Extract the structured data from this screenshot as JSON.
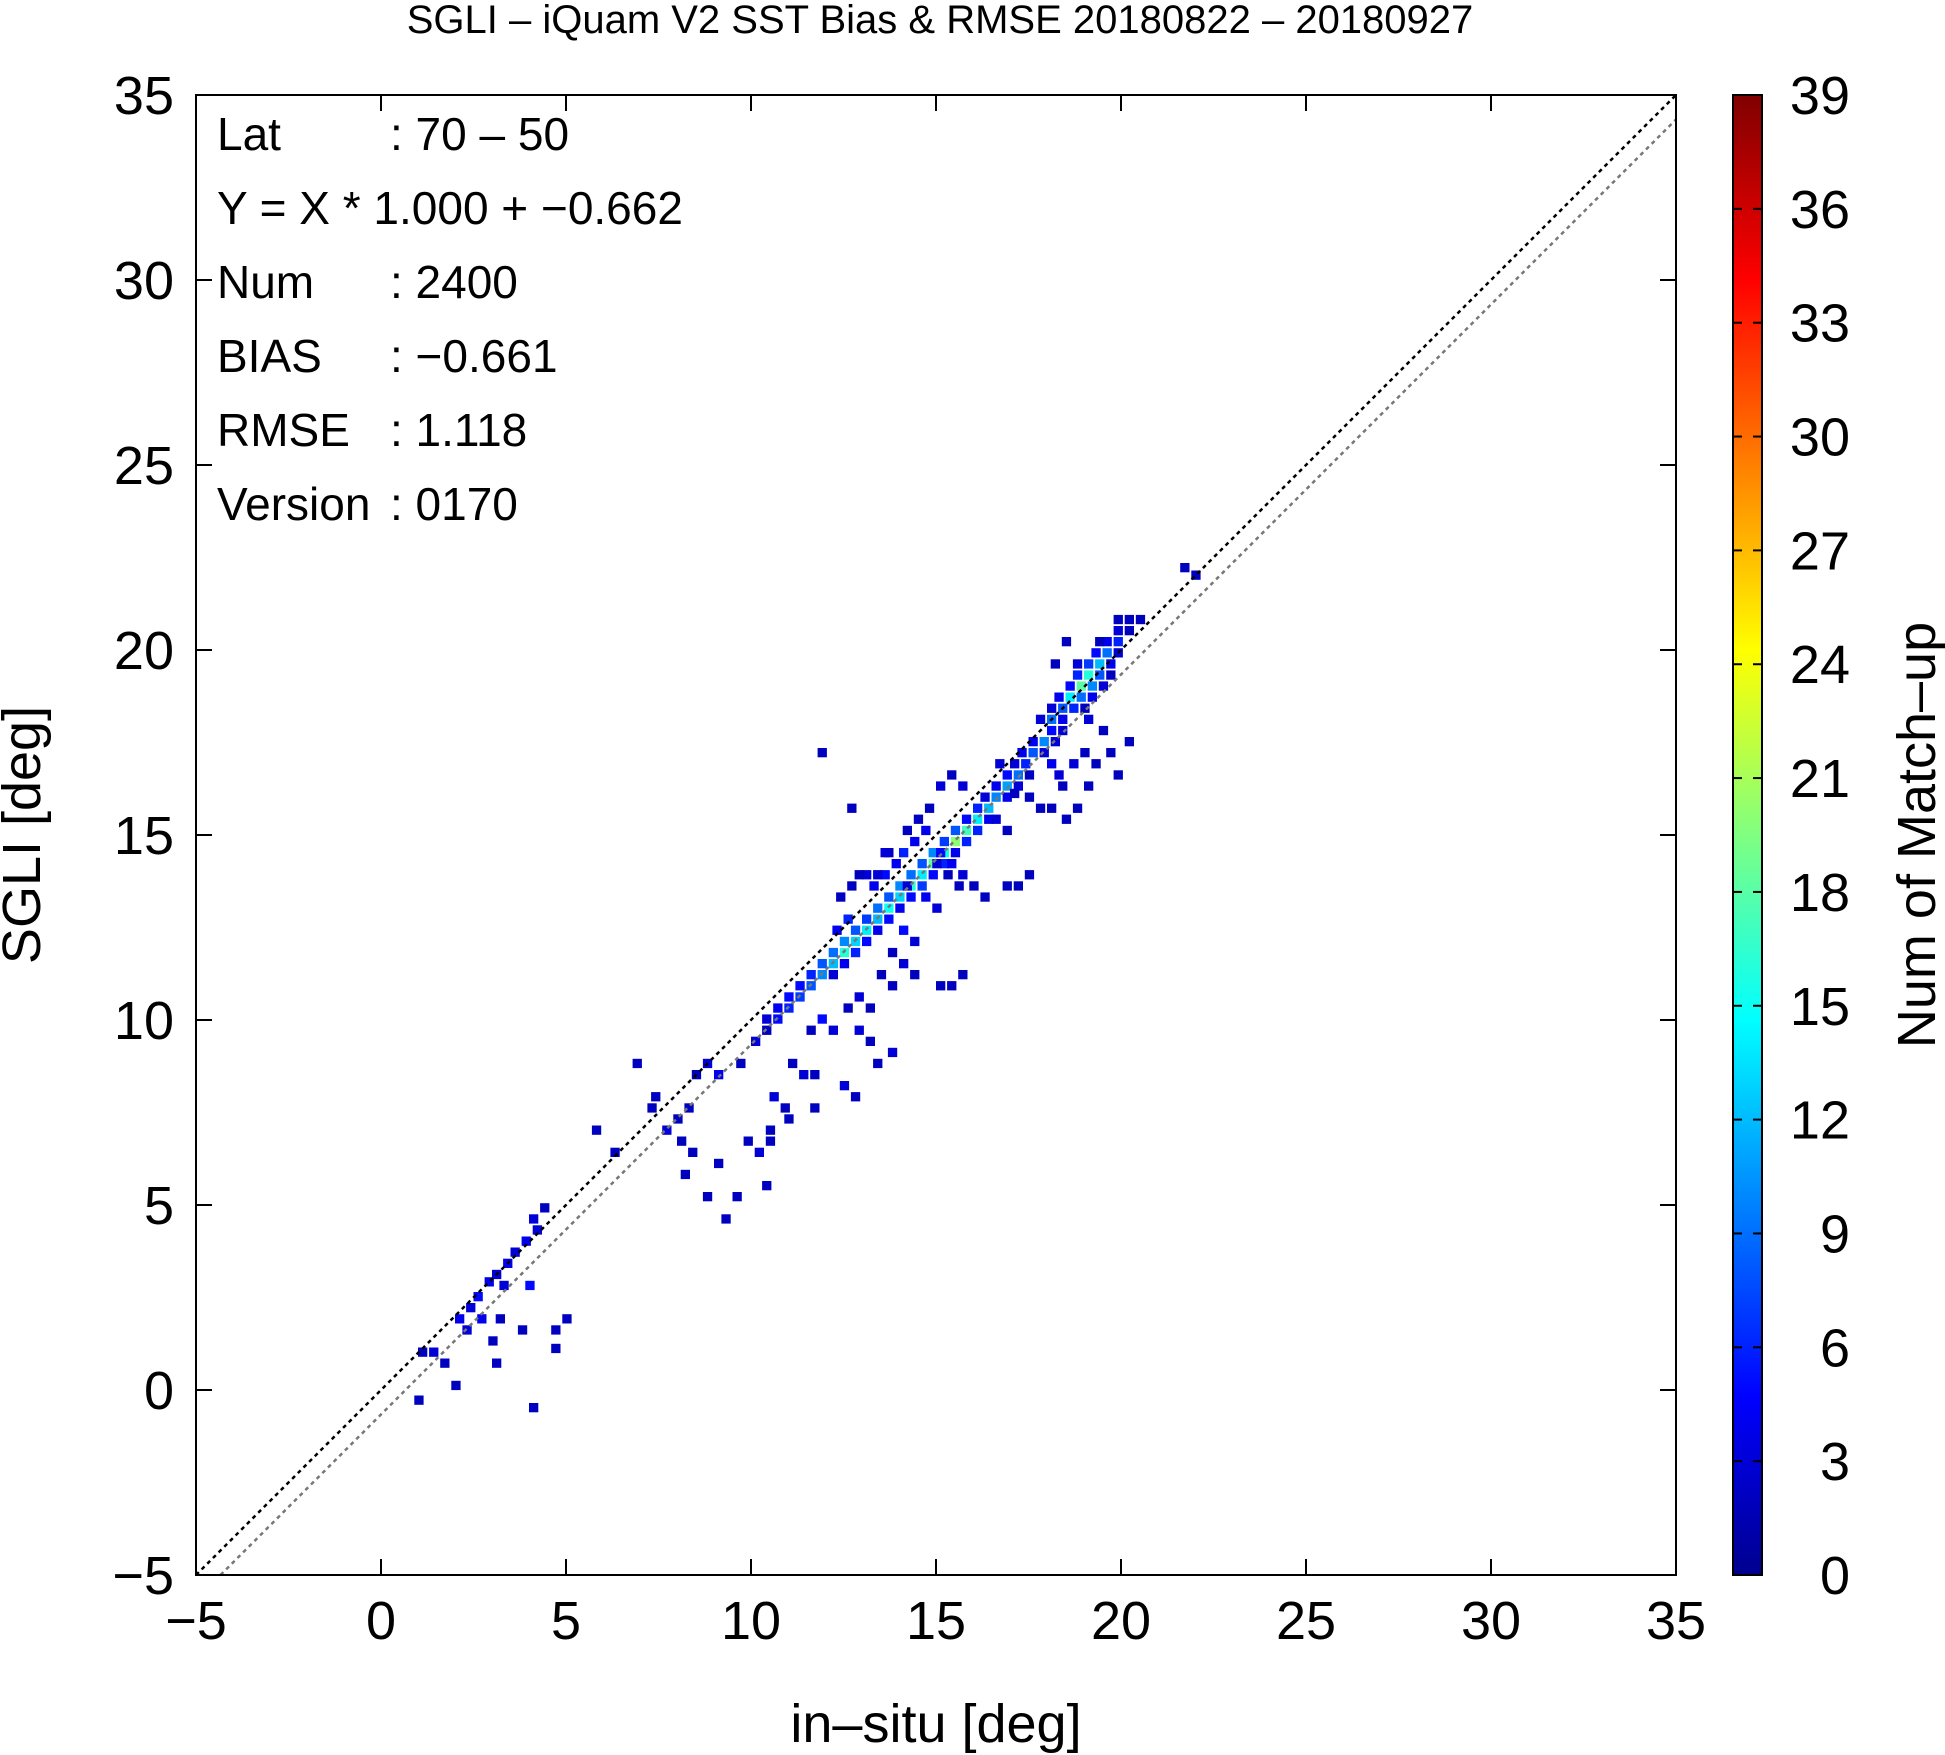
{
  "chart_data": {
    "type": "heatmap",
    "title": "SGLI – iQuam V2 SST Bias & RMSE 20180822 – 20180927",
    "xlabel": "in–situ [deg]",
    "ylabel": "SGLI [deg]",
    "xlim": [
      -5,
      35
    ],
    "ylim": [
      -5,
      35
    ],
    "x_ticks": [
      "−5",
      "0",
      "5",
      "10",
      "15",
      "20",
      "25",
      "30",
      "35"
    ],
    "y_ticks": [
      "−5",
      "0",
      "5",
      "10",
      "15",
      "20",
      "25",
      "30",
      "35"
    ],
    "colorbar": {
      "label": "Num of Match–up",
      "range": [
        0,
        39
      ],
      "ticks": [
        "0",
        "3",
        "6",
        "9",
        "12",
        "15",
        "18",
        "21",
        "24",
        "27",
        "30",
        "33",
        "36",
        "39"
      ]
    },
    "lines": [
      {
        "slope": 1.0,
        "intercept": 0.0,
        "color": "#000000",
        "style": "dotted"
      },
      {
        "slope": 1.0,
        "intercept": -0.662,
        "color": "#777777",
        "style": "dotted"
      }
    ],
    "stats": [
      {
        "label": "Lat",
        "value": ": 70 – 50"
      },
      {
        "label": "Y = X * 1.000 + −0.662",
        "value": ""
      },
      {
        "label": "Num",
        "value": ": 2400"
      },
      {
        "label": "BIAS",
        "value": ": −0.661"
      },
      {
        "label": "RMSE",
        "value": ": 1.118"
      },
      {
        "label": "Version",
        "value": ": 0170"
      }
    ],
    "bin_size": 0.25,
    "cells": [
      [
        21.6,
        22.1,
        2
      ],
      [
        21.9,
        21.9,
        2
      ],
      [
        19.8,
        20.7,
        2
      ],
      [
        20.1,
        20.7,
        2
      ],
      [
        20.4,
        20.7,
        2
      ],
      [
        19.8,
        20.4,
        3
      ],
      [
        20.1,
        20.4,
        2
      ],
      [
        19.5,
        20.1,
        4
      ],
      [
        19.8,
        20.1,
        6
      ],
      [
        19.2,
        19.8,
        5
      ],
      [
        19.5,
        19.8,
        9
      ],
      [
        19.8,
        19.8,
        3
      ],
      [
        19.0,
        19.5,
        7
      ],
      [
        19.3,
        19.5,
        12
      ],
      [
        19.6,
        19.5,
        4
      ],
      [
        18.7,
        19.2,
        6
      ],
      [
        19.0,
        19.2,
        16
      ],
      [
        19.3,
        19.2,
        8
      ],
      [
        18.5,
        18.9,
        5
      ],
      [
        18.8,
        18.9,
        18
      ],
      [
        19.1,
        18.9,
        10
      ],
      [
        19.4,
        18.9,
        3
      ],
      [
        18.2,
        18.6,
        4
      ],
      [
        18.5,
        18.6,
        14
      ],
      [
        18.8,
        18.6,
        9
      ],
      [
        19.1,
        18.6,
        4
      ],
      [
        18.0,
        18.3,
        3
      ],
      [
        18.3,
        18.3,
        8
      ],
      [
        18.6,
        18.3,
        6
      ],
      [
        18.9,
        18.3,
        2
      ],
      [
        17.7,
        18.0,
        3
      ],
      [
        18.0,
        18.0,
        9
      ],
      [
        18.3,
        18.0,
        4
      ],
      [
        18.0,
        17.7,
        5
      ],
      [
        18.3,
        17.7,
        3
      ],
      [
        17.5,
        17.4,
        4
      ],
      [
        17.8,
        17.4,
        10
      ],
      [
        18.1,
        17.4,
        3
      ],
      [
        17.2,
        17.1,
        4
      ],
      [
        17.5,
        17.1,
        8
      ],
      [
        17.8,
        17.1,
        3
      ],
      [
        18.0,
        16.8,
        4
      ],
      [
        18.2,
        16.5,
        3
      ],
      [
        17.0,
        16.8,
        3
      ],
      [
        17.3,
        16.8,
        6
      ],
      [
        16.8,
        16.5,
        5
      ],
      [
        17.1,
        16.5,
        9
      ],
      [
        16.5,
        16.2,
        4
      ],
      [
        16.8,
        16.2,
        11
      ],
      [
        17.1,
        16.2,
        3
      ],
      [
        16.2,
        15.9,
        3
      ],
      [
        16.5,
        15.9,
        10
      ],
      [
        16.8,
        15.9,
        4
      ],
      [
        16.0,
        15.6,
        6
      ],
      [
        16.3,
        15.6,
        12
      ],
      [
        15.7,
        15.3,
        5
      ],
      [
        16.0,
        15.3,
        14
      ],
      [
        16.3,
        15.3,
        4
      ],
      [
        15.4,
        15.0,
        8
      ],
      [
        15.7,
        15.0,
        17
      ],
      [
        16.0,
        15.0,
        6
      ],
      [
        15.1,
        14.7,
        7
      ],
      [
        15.4,
        14.7,
        20
      ],
      [
        15.7,
        14.7,
        6
      ],
      [
        14.8,
        14.4,
        10
      ],
      [
        15.1,
        14.4,
        15
      ],
      [
        15.4,
        14.4,
        4
      ],
      [
        14.5,
        14.1,
        8
      ],
      [
        14.8,
        14.1,
        18
      ],
      [
        15.1,
        14.1,
        6
      ],
      [
        14.2,
        13.8,
        9
      ],
      [
        14.5,
        13.8,
        14
      ],
      [
        14.8,
        13.8,
        5
      ],
      [
        13.9,
        13.5,
        10
      ],
      [
        14.2,
        13.5,
        16
      ],
      [
        14.5,
        13.5,
        7
      ],
      [
        13.6,
        13.2,
        8
      ],
      [
        13.9,
        13.2,
        13
      ],
      [
        14.2,
        13.2,
        5
      ],
      [
        13.3,
        12.9,
        9
      ],
      [
        13.6,
        12.9,
        15
      ],
      [
        13.9,
        12.9,
        4
      ],
      [
        13.0,
        12.6,
        7
      ],
      [
        13.3,
        12.6,
        12
      ],
      [
        13.6,
        12.6,
        5
      ],
      [
        12.7,
        12.3,
        8
      ],
      [
        13.0,
        12.3,
        14
      ],
      [
        13.3,
        12.3,
        4
      ],
      [
        12.4,
        12.0,
        10
      ],
      [
        12.7,
        12.0,
        13
      ],
      [
        13.0,
        12.0,
        5
      ],
      [
        12.1,
        11.7,
        9
      ],
      [
        12.4,
        11.7,
        16
      ],
      [
        12.7,
        11.7,
        6
      ],
      [
        11.8,
        11.4,
        8
      ],
      [
        12.1,
        11.4,
        12
      ],
      [
        12.4,
        11.4,
        4
      ],
      [
        11.5,
        11.1,
        6
      ],
      [
        11.8,
        11.1,
        10
      ],
      [
        12.1,
        11.1,
        3
      ],
      [
        11.2,
        10.8,
        5
      ],
      [
        11.5,
        10.8,
        8
      ],
      [
        10.9,
        10.5,
        5
      ],
      [
        11.2,
        10.5,
        7
      ],
      [
        10.6,
        10.2,
        4
      ],
      [
        10.9,
        10.2,
        6
      ],
      [
        10.3,
        9.9,
        3
      ],
      [
        10.6,
        9.9,
        5
      ],
      [
        14.0,
        14.4,
        6
      ],
      [
        14.3,
        14.7,
        4
      ],
      [
        13.5,
        13.8,
        5
      ],
      [
        13.2,
        13.5,
        4
      ],
      [
        12.5,
        12.6,
        6
      ],
      [
        12.2,
        12.3,
        4
      ],
      [
        13.0,
        13.8,
        3
      ],
      [
        12.8,
        13.8,
        2
      ],
      [
        13.3,
        13.8,
        3
      ],
      [
        13.6,
        14.4,
        2
      ],
      [
        12.6,
        13.5,
        2
      ],
      [
        12.3,
        13.2,
        2
      ],
      [
        14.9,
        14.1,
        3
      ],
      [
        15.2,
        13.8,
        2
      ],
      [
        15.5,
        13.5,
        2
      ],
      [
        14.6,
        13.2,
        4
      ],
      [
        14.9,
        12.9,
        3
      ],
      [
        14.0,
        12.3,
        5
      ],
      [
        14.3,
        12.0,
        3
      ],
      [
        13.7,
        11.7,
        2
      ],
      [
        14.0,
        11.4,
        3
      ],
      [
        13.4,
        11.1,
        2
      ],
      [
        13.7,
        10.8,
        2
      ],
      [
        14.3,
        11.1,
        2
      ],
      [
        15.0,
        10.8,
        2
      ],
      [
        15.3,
        10.8,
        2
      ],
      [
        15.6,
        11.1,
        2
      ],
      [
        12.8,
        10.5,
        3
      ],
      [
        12.5,
        10.2,
        2
      ],
      [
        13.1,
        10.2,
        2
      ],
      [
        11.8,
        9.9,
        5
      ],
      [
        12.1,
        9.6,
        3
      ],
      [
        11.5,
        9.6,
        2
      ],
      [
        12.8,
        9.6,
        3
      ],
      [
        13.1,
        9.3,
        2
      ],
      [
        13.7,
        9.0,
        3
      ],
      [
        13.3,
        8.7,
        2
      ],
      [
        11.0,
        8.7,
        2
      ],
      [
        11.3,
        8.4,
        3
      ],
      [
        11.6,
        8.4,
        2
      ],
      [
        12.4,
        8.1,
        3
      ],
      [
        12.7,
        7.8,
        2
      ],
      [
        11.6,
        7.5,
        2
      ],
      [
        10.5,
        7.8,
        3
      ],
      [
        10.8,
        7.5,
        2
      ],
      [
        10.9,
        7.2,
        2
      ],
      [
        10.4,
        6.9,
        2
      ],
      [
        10.1,
        6.3,
        3
      ],
      [
        10.4,
        6.6,
        2
      ],
      [
        10.3,
        5.4,
        2
      ],
      [
        9.8,
        6.6,
        2
      ],
      [
        9.5,
        5.1,
        2
      ],
      [
        9.2,
        4.5,
        2
      ],
      [
        9.0,
        6.0,
        2
      ],
      [
        9.0,
        8.4,
        4
      ],
      [
        8.7,
        8.7,
        3
      ],
      [
        8.4,
        8.4,
        2
      ],
      [
        8.2,
        7.5,
        2
      ],
      [
        7.9,
        7.2,
        2
      ],
      [
        7.6,
        6.9,
        3
      ],
      [
        7.3,
        7.8,
        2
      ],
      [
        6.8,
        8.7,
        2
      ],
      [
        8.0,
        6.6,
        2
      ],
      [
        8.3,
        6.3,
        2
      ],
      [
        8.7,
        5.1,
        2
      ],
      [
        8.1,
        5.7,
        2
      ],
      [
        6.2,
        6.3,
        2
      ],
      [
        5.7,
        6.9,
        2
      ],
      [
        7.2,
        7.5,
        2
      ],
      [
        9.6,
        8.7,
        2
      ],
      [
        10.0,
        9.3,
        3
      ],
      [
        10.3,
        9.6,
        2
      ],
      [
        11.8,
        17.1,
        2
      ],
      [
        12.6,
        15.6,
        2
      ],
      [
        13.5,
        14.4,
        3
      ],
      [
        13.8,
        14.1,
        4
      ],
      [
        14.1,
        13.5,
        3
      ],
      [
        15.0,
        14.4,
        5
      ],
      [
        15.3,
        14.1,
        4
      ],
      [
        15.6,
        13.8,
        3
      ],
      [
        15.9,
        13.5,
        2
      ],
      [
        16.2,
        13.2,
        2
      ],
      [
        16.8,
        13.5,
        2
      ],
      [
        17.1,
        13.5,
        2
      ],
      [
        17.4,
        13.8,
        2
      ],
      [
        16.5,
        15.3,
        3
      ],
      [
        16.8,
        15.0,
        2
      ],
      [
        17.7,
        15.6,
        2
      ],
      [
        18.0,
        15.6,
        2
      ],
      [
        18.4,
        15.3,
        2
      ],
      [
        18.7,
        15.6,
        2
      ],
      [
        19.0,
        16.2,
        2
      ],
      [
        18.3,
        16.2,
        2
      ],
      [
        18.6,
        16.8,
        3
      ],
      [
        18.9,
        17.1,
        2
      ],
      [
        19.2,
        16.8,
        2
      ],
      [
        19.6,
        17.1,
        2
      ],
      [
        19.8,
        16.5,
        2
      ],
      [
        20.1,
        17.4,
        2
      ],
      [
        19.4,
        17.7,
        2
      ],
      [
        17.0,
        16.0,
        2
      ],
      [
        16.6,
        16.8,
        3
      ],
      [
        15.6,
        16.2,
        3
      ],
      [
        15.3,
        16.5,
        2
      ],
      [
        15.0,
        16.2,
        3
      ],
      [
        14.7,
        15.6,
        2
      ],
      [
        14.4,
        15.3,
        2
      ],
      [
        14.1,
        15.0,
        2
      ],
      [
        14.6,
        15.0,
        4
      ],
      [
        17.4,
        15.9,
        2
      ],
      [
        17.4,
        16.5,
        2
      ],
      [
        19.0,
        18.0,
        3
      ],
      [
        19.6,
        19.2,
        2
      ],
      [
        19.3,
        20.1,
        2
      ],
      [
        18.4,
        20.1,
        2
      ],
      [
        18.7,
        19.5,
        3
      ],
      [
        18.1,
        19.5,
        2
      ],
      [
        4.0,
        4.5,
        3
      ],
      [
        4.3,
        4.8,
        2
      ],
      [
        4.1,
        4.2,
        3
      ],
      [
        3.8,
        3.9,
        4
      ],
      [
        3.5,
        3.6,
        3
      ],
      [
        3.3,
        3.3,
        4
      ],
      [
        3.0,
        3.0,
        3
      ],
      [
        2.8,
        2.8,
        4
      ],
      [
        3.2,
        2.7,
        3
      ],
      [
        3.9,
        2.7,
        5
      ],
      [
        2.5,
        2.4,
        5
      ],
      [
        2.3,
        2.1,
        3
      ],
      [
        2.6,
        1.8,
        4
      ],
      [
        2.0,
        1.8,
        4
      ],
      [
        2.2,
        1.5,
        3
      ],
      [
        3.1,
        1.8,
        2
      ],
      [
        3.7,
        1.5,
        2
      ],
      [
        2.9,
        1.2,
        2
      ],
      [
        4.6,
        1.5,
        2
      ],
      [
        4.9,
        1.8,
        2
      ],
      [
        4.6,
        1.0,
        2
      ],
      [
        3.0,
        0.6,
        2
      ],
      [
        1.6,
        0.6,
        2
      ],
      [
        1.3,
        0.9,
        3
      ],
      [
        1.0,
        0.9,
        2
      ],
      [
        1.9,
        0.0,
        2
      ],
      [
        0.9,
        -0.4,
        2
      ],
      [
        4.0,
        -0.6,
        2
      ]
    ]
  }
}
